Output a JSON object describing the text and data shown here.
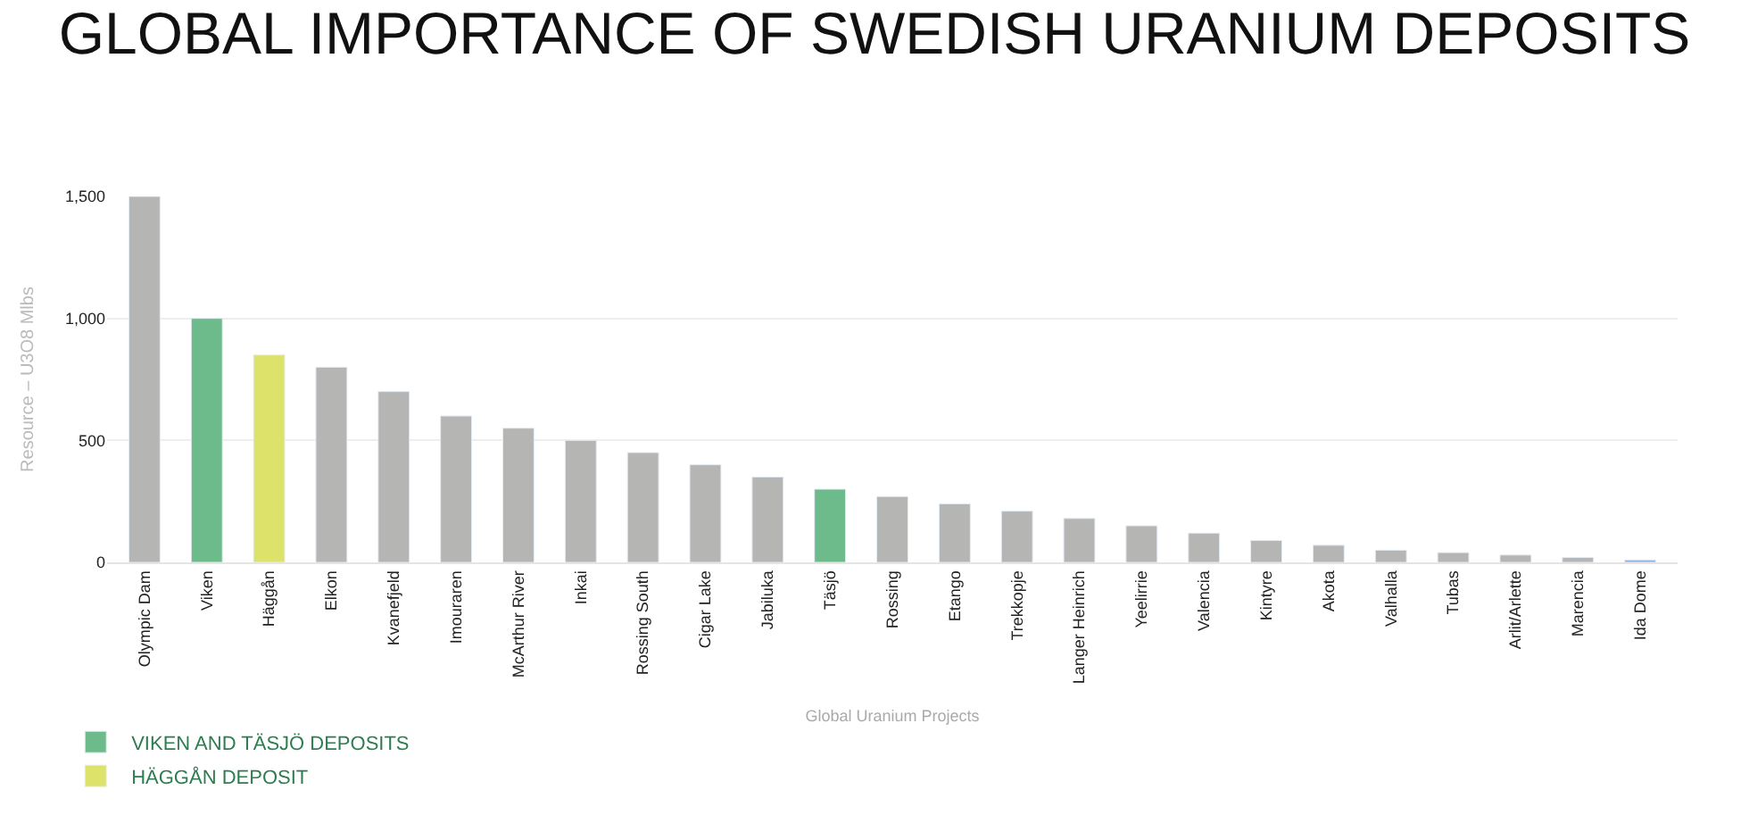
{
  "chart_data": {
    "type": "bar",
    "title": "GLOBAL IMPORTANCE OF SWEDISH URANIUM DEPOSITS",
    "xlabel": "Global Uranium Projects",
    "ylabel": "Resource – U3O8 Mlbs",
    "categories": [
      "Olympic Dam",
      "Viken",
      "Häggån",
      "Elkon",
      "Kvanefjeld",
      "Imouraren",
      "McArthur River",
      "Inkai",
      "Rossing South",
      "Cigar Lake",
      "Jabiluka",
      "Täsjö",
      "Rossing",
      "Etango",
      "Trekkopje",
      "Langer Heinrich",
      "Yeelirrie",
      "Valencia",
      "Kintyre",
      "Akota",
      "Valhalla",
      "Tubas",
      "Arlit/Arlette",
      "Marencia",
      "Ida Dome"
    ],
    "series": [
      {
        "color": "#b5b5b3",
        "values": [
          1500,
          null,
          null,
          800,
          700,
          600,
          550,
          500,
          450,
          400,
          350,
          null,
          270,
          240,
          210,
          180,
          150,
          120,
          90,
          70,
          50,
          40,
          30,
          20,
          null
        ]
      },
      {
        "name": "VIKEN AND TÄSJÖ DEPOSITS",
        "color": "#6dbb8a",
        "values": [
          null,
          1000,
          null,
          null,
          null,
          null,
          null,
          null,
          null,
          null,
          null,
          300,
          null,
          null,
          null,
          null,
          null,
          null,
          null,
          null,
          null,
          null,
          null,
          null,
          null
        ]
      },
      {
        "name": "HÄGGÅN DEPOSIT",
        "color": "#dde36a",
        "values": [
          null,
          null,
          850,
          null,
          null,
          null,
          null,
          null,
          null,
          null,
          null,
          null,
          null,
          null,
          null,
          null,
          null,
          null,
          null,
          null,
          null,
          null,
          null,
          null,
          null
        ]
      },
      {
        "color": "#8fb0e0",
        "values": [
          null,
          null,
          null,
          null,
          null,
          null,
          null,
          null,
          null,
          null,
          null,
          null,
          null,
          null,
          null,
          null,
          null,
          null,
          null,
          null,
          null,
          null,
          null,
          null,
          10
        ]
      }
    ],
    "ylim": [
      0,
      1500
    ],
    "yticks": [
      0,
      500,
      {
        "value": 1000,
        "label": "1,000"
      },
      {
        "value": 1500,
        "label": "1,500"
      }
    ],
    "grid": "y",
    "legend": "bottom left"
  }
}
